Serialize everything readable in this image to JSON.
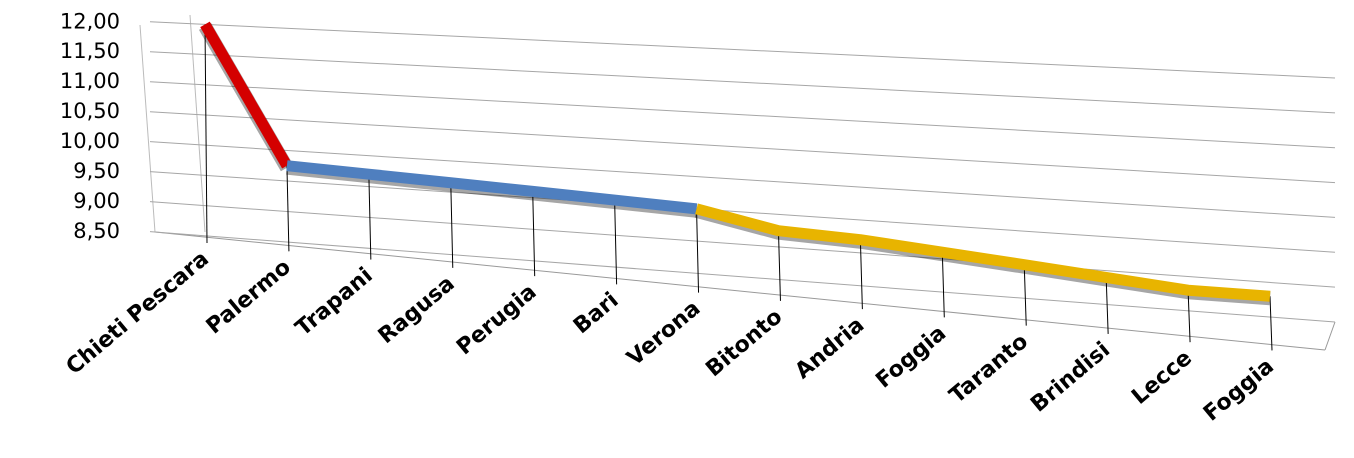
{
  "chart_data": {
    "type": "line",
    "categories": [
      "Chieti Pescara",
      "Palermo",
      "Trapani",
      "Ragusa",
      "Perugia",
      "Bari",
      "Verona",
      "Bitonto",
      "Andria",
      "Foggia",
      "Taranto",
      "Brindisi",
      "Lecce",
      "Foggia"
    ],
    "series": [
      {
        "color": "#d40000",
        "values": [
          12.0,
          9.75,
          null,
          null,
          null,
          null,
          null,
          null,
          null,
          null,
          null,
          null,
          null,
          null
        ]
      },
      {
        "color": "#4f7fbf",
        "values": [
          null,
          9.75,
          9.7,
          9.65,
          9.6,
          9.55,
          9.5,
          null,
          null,
          null,
          null,
          null,
          null,
          null
        ]
      },
      {
        "color": "#e8b400",
        "values": [
          null,
          null,
          null,
          null,
          null,
          null,
          9.5,
          9.25,
          9.2,
          9.1,
          9.0,
          8.9,
          8.8,
          8.8
        ]
      }
    ],
    "ylim": [
      8.5,
      12.0
    ],
    "yticks": [
      {
        "value": 8.5,
        "label": "8,50"
      },
      {
        "value": 9.0,
        "label": "9,00"
      },
      {
        "value": 9.5,
        "label": "9,50"
      },
      {
        "value": 10.0,
        "label": "10,00"
      },
      {
        "value": 10.5,
        "label": "10,50"
      },
      {
        "value": 11.0,
        "label": "11,00"
      },
      {
        "value": 11.5,
        "label": "11,50"
      },
      {
        "value": 12.0,
        "label": "12,00"
      }
    ],
    "grid": true
  }
}
